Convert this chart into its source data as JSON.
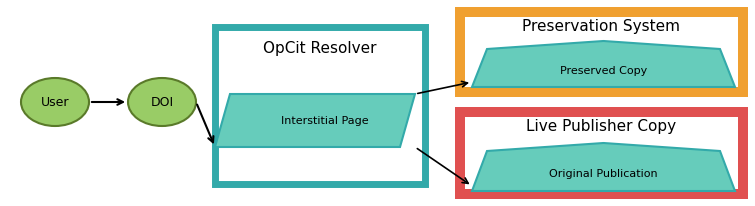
{
  "fig_width": 7.55,
  "fig_height": 2.07,
  "dpi": 100,
  "bg_color": "#ffffff",
  "green_fill": "#99cc66",
  "green_edge": "#5a7a2a",
  "teal_fill": "#66ccbb",
  "teal_edge": "#33aaaa",
  "orange_box_edge": "#f0a030",
  "orange_box_fill": "#f0a030",
  "red_box_edge": "#e05050",
  "red_box_fill": "#e05050",
  "box_fill": "#ffffff",
  "user_label": "User",
  "doi_label": "DOI",
  "interstitial_label": "Interstitial Page",
  "opcit_label": "OpCit Resolver",
  "preservation_label": "Preservation System",
  "preserved_copy_label": "Preserved Copy",
  "live_publisher_label": "Live Publisher Copy",
  "original_pub_label": "Original Publication"
}
